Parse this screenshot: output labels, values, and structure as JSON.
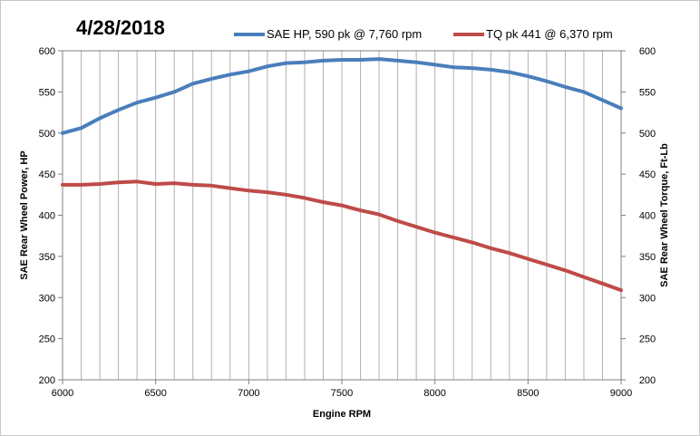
{
  "chart_data": {
    "type": "line",
    "title": "4/28/2018",
    "xlabel": "Engine RPM",
    "ylabel_left": "SAE Rear Wheel Power, HP",
    "ylabel_right": "SAE Rear Wheel Torque, Ft-Lb",
    "xlim": [
      6000,
      9000
    ],
    "ylim_left": [
      200,
      600
    ],
    "ylim_right": [
      200,
      600
    ],
    "x_ticks": [
      "6000",
      "6500",
      "7000",
      "7500",
      "8000",
      "8500",
      "9000"
    ],
    "y_ticks_left": [
      "200",
      "250",
      "300",
      "350",
      "400",
      "450",
      "500",
      "550",
      "600"
    ],
    "y_ticks_right": [
      "200",
      "250",
      "300",
      "350",
      "400",
      "450",
      "500",
      "550",
      "600"
    ],
    "grid": {
      "vertical": true,
      "horizontal": false
    },
    "legend_placement": "top",
    "x": [
      6000,
      6100,
      6200,
      6300,
      6400,
      6500,
      6600,
      6700,
      6800,
      6900,
      7000,
      7100,
      7200,
      7300,
      7400,
      7500,
      7600,
      7700,
      7800,
      7900,
      8000,
      8100,
      8200,
      8300,
      8400,
      8500,
      8600,
      8700,
      8800,
      8900,
      9000
    ],
    "series": [
      {
        "name": "SAE HP, 590 pk @ 7,760 rpm",
        "color": "#4a7ebb",
        "axis": "left",
        "values": [
          500,
          506,
          518,
          528,
          537,
          543,
          550,
          560,
          566,
          571,
          575,
          581,
          585,
          586,
          588,
          589,
          589,
          590,
          588,
          586,
          583,
          580,
          579,
          577,
          574,
          569,
          563,
          556,
          550,
          540,
          530
        ]
      },
      {
        "name": "TQ pk 441 @ 6,370 rpm",
        "color": "#be4b48",
        "axis": "right",
        "values": [
          437,
          437,
          438,
          440,
          441,
          438,
          439,
          437,
          436,
          433,
          430,
          428,
          425,
          421,
          416,
          412,
          406,
          401,
          393,
          386,
          379,
          373,
          367,
          360,
          354,
          347,
          340,
          333,
          325,
          317,
          309
        ]
      }
    ]
  }
}
